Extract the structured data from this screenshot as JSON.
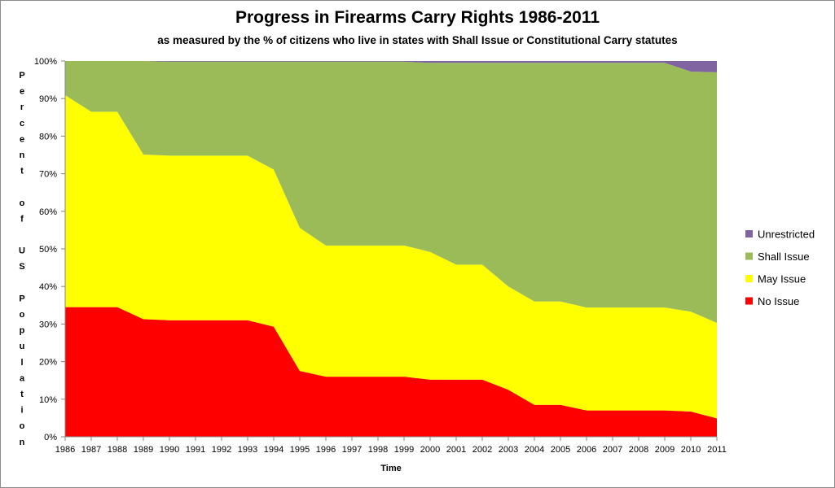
{
  "chart_data": {
    "type": "area",
    "title": "Progress in Firearms Carry Rights 1986-2011",
    "subtitle": "as measured by the % of citizens who live in states with Shall Issue or Constitutional Carry statutes",
    "xlabel": "Time",
    "ylabel": "Percent of US Population",
    "ylabel_words": [
      "Percent",
      "of",
      "US",
      "Population"
    ],
    "ylim": [
      0,
      100
    ],
    "yticks": [
      "0%",
      "10%",
      "20%",
      "30%",
      "40%",
      "50%",
      "60%",
      "70%",
      "80%",
      "90%",
      "100%"
    ],
    "categories": [
      "1986",
      "1987",
      "1988",
      "1989",
      "1990",
      "1991",
      "1992",
      "1993",
      "1994",
      "1995",
      "1996",
      "1997",
      "1998",
      "1999",
      "2000",
      "2001",
      "2002",
      "2003",
      "2004",
      "2005",
      "2006",
      "2007",
      "2008",
      "2009",
      "2010",
      "2011"
    ],
    "stacked": true,
    "series": [
      {
        "name": "No Issue",
        "color": "#ff0000",
        "values": [
          34.5,
          34.5,
          34.5,
          31.3,
          31.0,
          31.0,
          31.0,
          31.0,
          29.3,
          17.5,
          16.0,
          16.0,
          16.0,
          16.0,
          15.2,
          15.2,
          15.2,
          12.5,
          8.5,
          8.5,
          7.0,
          7.0,
          7.0,
          7.0,
          6.7,
          4.9
        ]
      },
      {
        "name": "May Issue",
        "color": "#ffff00",
        "values": [
          56.4,
          52.0,
          52.0,
          43.8,
          43.8,
          43.8,
          43.8,
          43.8,
          41.8,
          38.1,
          34.9,
          34.9,
          34.9,
          34.9,
          34.0,
          30.6,
          30.6,
          27.5,
          27.5,
          27.5,
          27.4,
          27.4,
          27.4,
          27.4,
          26.6,
          25.4
        ]
      },
      {
        "name": "Shall Issue",
        "color": "#9bbb59",
        "values": [
          9.1,
          13.5,
          13.5,
          24.9,
          25.0,
          25.0,
          25.0,
          25.0,
          28.7,
          44.2,
          48.9,
          48.9,
          48.9,
          48.9,
          50.3,
          53.7,
          53.7,
          59.5,
          63.5,
          63.5,
          65.1,
          65.1,
          65.1,
          65.1,
          63.9,
          66.7
        ]
      },
      {
        "name": "Unrestricted",
        "color": "#8064a2",
        "values": [
          0,
          0,
          0,
          0,
          0.2,
          0.2,
          0.2,
          0.2,
          0.2,
          0.2,
          0.2,
          0.2,
          0.2,
          0.2,
          0.5,
          0.5,
          0.5,
          0.5,
          0.5,
          0.5,
          0.5,
          0.5,
          0.5,
          0.5,
          2.8,
          3.0
        ]
      }
    ],
    "legend": {
      "placement": "right",
      "order": [
        "Unrestricted",
        "Shall Issue",
        "May Issue",
        "No Issue"
      ]
    }
  }
}
